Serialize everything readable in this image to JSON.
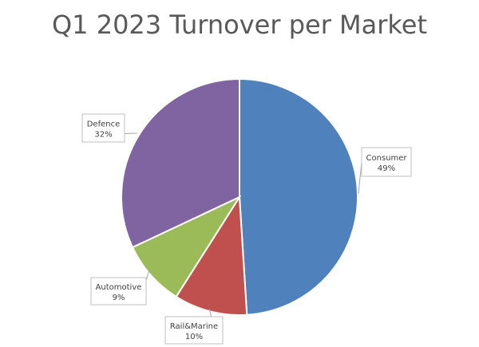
{
  "chart_data": {
    "type": "pie",
    "title": "Q1 2023 Turnover per Market",
    "slices": [
      {
        "label": "Consumer",
        "value": 49,
        "percent_label": "49%",
        "color": "#4F81BD"
      },
      {
        "label": "Rail&Marine",
        "value": 10,
        "percent_label": "10%",
        "color": "#C0504D"
      },
      {
        "label": "Automotive",
        "value": 9,
        "percent_label": "9%",
        "color": "#9BBB59"
      },
      {
        "label": "Defence",
        "value": 32,
        "percent_label": "32%",
        "color": "#8064A2"
      }
    ],
    "start_angle": "12 o'clock",
    "direction": "clockwise",
    "labels": "callouts with percentages"
  }
}
